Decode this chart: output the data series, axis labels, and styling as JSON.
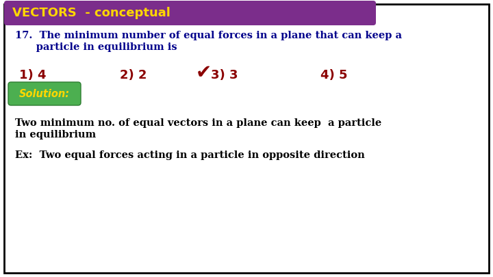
{
  "title": "VECTORS  - conceptual",
  "title_bg": "#7B2D8B",
  "title_color": "#FFD700",
  "q_line1": "17.  The minimum number of equal forces in a plane that can keep a",
  "q_line2": "      particle in equilibrium is",
  "question_color": "#00008B",
  "options": [
    "1) 4",
    "2) 2",
    "3) 3",
    "4) 5"
  ],
  "options_color": "#8B0000",
  "correct_option": 2,
  "solution_label": "Solution:",
  "solution_bg": "#4CAF50",
  "solution_text_color": "#FFD700",
  "exp_line1": "Two minimum no. of equal vectors in a plane can keep  a particle",
  "exp_line2": "in equilibrium",
  "exp_line3": "Ex:  Two equal forces acting in a particle in opposite direction",
  "explanation_color": "#000000",
  "bg_color": "#FFFFFF",
  "border_color": "#000000"
}
